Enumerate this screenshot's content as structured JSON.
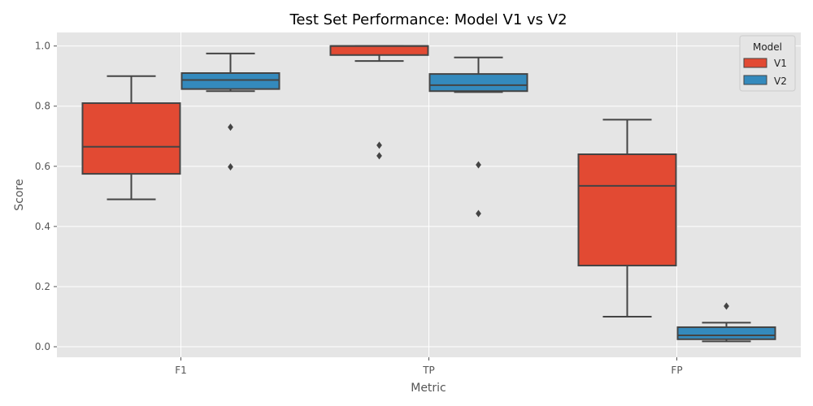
{
  "chart_data": {
    "type": "box",
    "title": "Test Set Performance: Model V1 vs V2",
    "xlabel": "Metric",
    "ylabel": "Score",
    "ylim": [
      -0.035,
      1.045
    ],
    "yticks": [
      "0.0",
      "0.2",
      "0.4",
      "0.6",
      "0.8",
      "1.0"
    ],
    "categories": [
      "F1",
      "TP",
      "FP"
    ],
    "grid": true,
    "legend": {
      "title": "Model",
      "placement": "top-right"
    },
    "series": [
      {
        "name": "V1",
        "color": "#E24A33",
        "boxes": [
          {
            "category": "F1",
            "whisker_low": 0.49,
            "q1": 0.575,
            "median": 0.665,
            "q3": 0.81,
            "whisker_high": 0.9,
            "outliers": []
          },
          {
            "category": "TP",
            "whisker_low": 0.95,
            "q1": 0.97,
            "median": 1.0,
            "q3": 1.0,
            "whisker_high": 1.0,
            "outliers": [
              0.67,
              0.635
            ]
          },
          {
            "category": "FP",
            "whisker_low": 0.1,
            "q1": 0.27,
            "median": 0.535,
            "q3": 0.64,
            "whisker_high": 0.755,
            "outliers": []
          }
        ]
      },
      {
        "name": "V2",
        "color": "#348ABD",
        "boxes": [
          {
            "category": "F1",
            "whisker_low": 0.85,
            "q1": 0.857,
            "median": 0.887,
            "q3": 0.91,
            "whisker_high": 0.975,
            "outliers": [
              0.73,
              0.598
            ]
          },
          {
            "category": "TP",
            "whisker_low": 0.847,
            "q1": 0.85,
            "median": 0.87,
            "q3": 0.907,
            "whisker_high": 0.962,
            "outliers": [
              0.605,
              0.443
            ]
          },
          {
            "category": "FP",
            "whisker_low": 0.018,
            "q1": 0.025,
            "median": 0.038,
            "q3": 0.065,
            "whisker_high": 0.08,
            "outliers": [
              0.135
            ]
          }
        ]
      }
    ]
  }
}
